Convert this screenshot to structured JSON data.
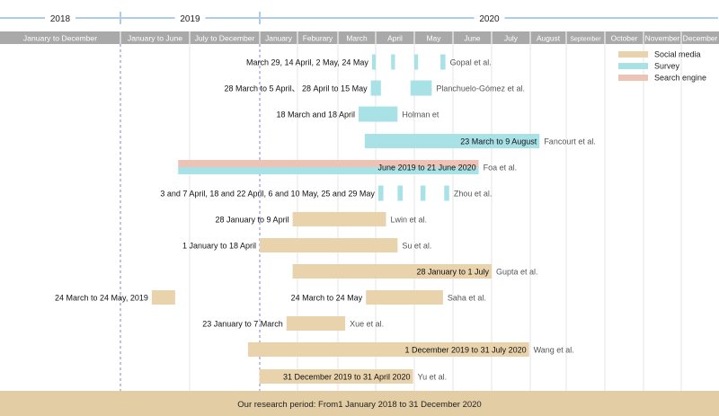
{
  "chart_data": {
    "type": "gantt-timeline",
    "years": [
      {
        "label": "2018"
      },
      {
        "label": "2019"
      },
      {
        "label": "2020"
      }
    ],
    "periods": [
      {
        "label": "January to December",
        "start": "2018-01-01",
        "end": "2019-01-01"
      },
      {
        "label": "January to June",
        "start": "2019-01-01",
        "end": "2019-07-01"
      },
      {
        "label": "July to December",
        "start": "2019-07-01",
        "end": "2020-01-01"
      },
      {
        "label": "January",
        "start": "2020-01-01",
        "end": "2020-02-01"
      },
      {
        "label": "Feburary",
        "start": "2020-02-01",
        "end": "2020-03-01"
      },
      {
        "label": "March",
        "start": "2020-03-01",
        "end": "2020-04-01"
      },
      {
        "label": "April",
        "start": "2020-04-01",
        "end": "2020-05-01"
      },
      {
        "label": "May",
        "start": "2020-05-01",
        "end": "2020-06-01"
      },
      {
        "label": "June",
        "start": "2020-06-01",
        "end": "2020-07-01"
      },
      {
        "label": "July",
        "start": "2020-07-01",
        "end": "2020-08-01"
      },
      {
        "label": "August",
        "start": "2020-08-01",
        "end": "2020-09-01"
      },
      {
        "label": "September",
        "start": "2020-09-01",
        "end": "2020-10-01"
      },
      {
        "label": "October",
        "start": "2020-10-01",
        "end": "2020-11-01"
      },
      {
        "label": "November",
        "start": "2020-11-01",
        "end": "2020-12-01"
      },
      {
        "label": "December",
        "start": "2020-12-01",
        "end": "2021-01-01"
      }
    ],
    "legend": {
      "position": "top-right",
      "items": [
        {
          "name": "Social media",
          "color": "#e8d3ac"
        },
        {
          "name": "Survey",
          "color": "#a8e2e6"
        },
        {
          "name": "Search engine",
          "color": "#ecc3b5"
        }
      ]
    },
    "colors": {
      "Social media": "#e8d3ac",
      "Survey": "#a8e2e6",
      "Search engine": "#ecc3b5",
      "header_bar": "#a9a9a9",
      "year_line": "#5b9bd5",
      "divider": "#8080e0",
      "footer": "#e3cda4"
    },
    "studies": [
      {
        "author": "Gopal et al.",
        "period_text": "March 29, 14 April, 2 May, 24 May",
        "bars": [
          {
            "type": "Survey",
            "start": "2020-03-29",
            "end": "2020-04-01"
          },
          {
            "type": "Survey",
            "start": "2020-04-13",
            "end": "2020-04-16"
          },
          {
            "type": "Survey",
            "start": "2020-05-01",
            "end": "2020-05-04"
          },
          {
            "type": "Survey",
            "start": "2020-05-22",
            "end": "2020-05-26"
          }
        ]
      },
      {
        "author": "Planchuelo-Gómez et al.",
        "period_text": "28 March to 5 April、 28 April to 15 May",
        "bars": [
          {
            "type": "Survey",
            "start": "2020-03-28",
            "end": "2020-04-05"
          },
          {
            "type": "Survey",
            "start": "2020-04-28",
            "end": "2020-05-15"
          }
        ]
      },
      {
        "author": "Holman et",
        "period_text": "18 March and 18 April",
        "bars": [
          {
            "type": "Survey",
            "start": "2020-03-18",
            "end": "2020-04-18"
          }
        ]
      },
      {
        "author": "Fancourt et al.",
        "period_text": "23 March to 9 August",
        "bars": [
          {
            "type": "Survey",
            "start": "2020-03-23",
            "end": "2020-08-09"
          }
        ]
      },
      {
        "author": "Foa et al.",
        "period_text": "June 2019 to 21 June 2020",
        "bars": [
          {
            "type": "Search engine",
            "start": "2019-06-01",
            "end": "2020-06-21",
            "lane": "top"
          },
          {
            "type": "Survey",
            "start": "2019-06-01",
            "end": "2020-06-21",
            "lane": "bottom"
          }
        ]
      },
      {
        "author": "Zhou et al.",
        "period_text": "3 and 7 April, 18 and 22 April, 6 and 10 May, 25 and 29 May",
        "bars": [
          {
            "type": "Survey",
            "start": "2020-04-03",
            "end": "2020-04-07"
          },
          {
            "type": "Survey",
            "start": "2020-04-18",
            "end": "2020-04-22"
          },
          {
            "type": "Survey",
            "start": "2020-05-06",
            "end": "2020-05-10"
          },
          {
            "type": "Survey",
            "start": "2020-05-25",
            "end": "2020-05-29"
          }
        ]
      },
      {
        "author": "Lwin et al.",
        "period_text": "28 January to 9 April",
        "bars": [
          {
            "type": "Social media",
            "start": "2020-01-28",
            "end": "2020-04-09"
          }
        ]
      },
      {
        "author": "Su et al.",
        "period_text": "1 January to 18 April",
        "bars": [
          {
            "type": "Social media",
            "start": "2020-01-01",
            "end": "2020-04-18"
          }
        ]
      },
      {
        "author": "Gupta et al.",
        "period_text": "28 January to 1 July",
        "bars": [
          {
            "type": "Social media",
            "start": "2020-01-28",
            "end": "2020-07-01"
          }
        ]
      },
      {
        "author": "Saha et al.",
        "period_text": "24 March to 24 May",
        "bars": [
          {
            "type": "Social media",
            "start": "2020-03-24",
            "end": "2020-05-24"
          }
        ]
      },
      {
        "author": "",
        "period_text": "24 March to 24 May, 2019",
        "bars": [
          {
            "type": "Social media",
            "start": "2019-03-24",
            "end": "2019-05-24"
          }
        ]
      },
      {
        "author": "Xue et al.",
        "period_text": "23 January to 7 March",
        "bars": [
          {
            "type": "Social media",
            "start": "2020-01-23",
            "end": "2020-03-07"
          }
        ]
      },
      {
        "author": "Wang et al.",
        "period_text": "1 December 2019 to 31 July 2020",
        "bars": [
          {
            "type": "Social media",
            "start": "2019-12-01",
            "end": "2020-07-31"
          }
        ]
      },
      {
        "author": "Yu et al.",
        "period_text": "31 December 2019 to 31 April 2020",
        "bars": [
          {
            "type": "Social media",
            "start": "2019-12-31",
            "end": "2020-04-30"
          }
        ]
      }
    ],
    "footer": "Our research period: From1 January 2018 to 31 December 2020"
  }
}
